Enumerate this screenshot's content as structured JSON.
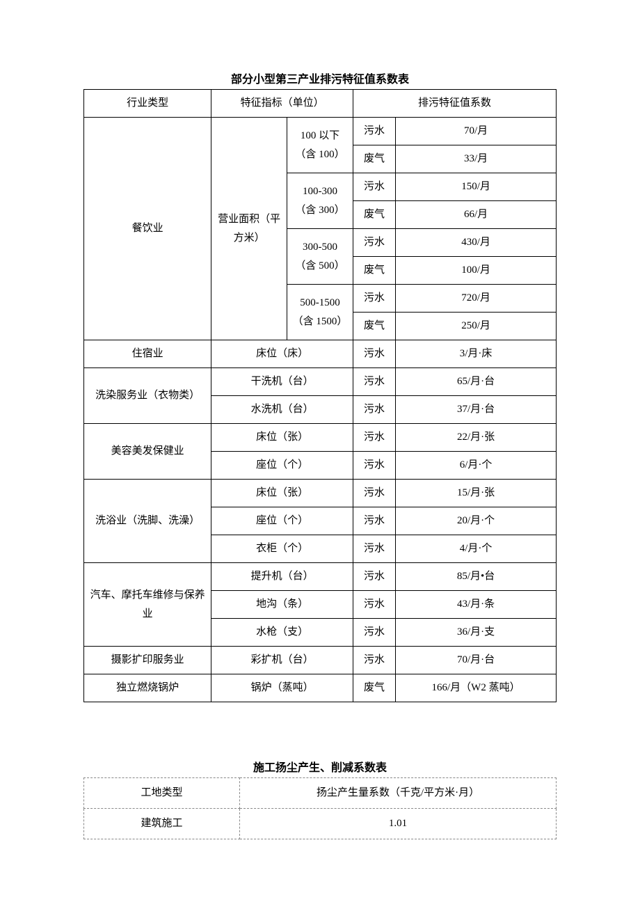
{
  "table1": {
    "title": "部分小型第三产业排污特征值系数表",
    "headers": [
      "行业类型",
      "特征指标（单位）",
      "排污特征值系数"
    ],
    "col_widths": [
      "27%",
      "16%",
      "14%",
      "9%",
      "34%"
    ],
    "catering": {
      "industry": "餐饮业",
      "metric": "营业面积（平方米）",
      "ranges": [
        {
          "range_l1": "100 以下",
          "range_l2": "（含 100）",
          "t1": "污水",
          "v1": "70/月",
          "t2": "废气",
          "v2": "33/月"
        },
        {
          "range_l1": "100-300",
          "range_l2": "（含 300）",
          "t1": "污水",
          "v1": "150/月",
          "t2": "废气",
          "v2": "66/月"
        },
        {
          "range_l1": "300-500",
          "range_l2": "（含 500）",
          "t1": "污水",
          "v1": "430/月",
          "t2": "废气",
          "v2": "100/月"
        },
        {
          "range_l1": "500-1500",
          "range_l2": "（含 1500）",
          "t1": "污水",
          "v1": "720/月",
          "t2": "废气",
          "v2": "250/月"
        }
      ]
    },
    "rows": [
      {
        "industry": "住宿业",
        "metric": "床位（床）",
        "type": "污水",
        "value": "3/月·床",
        "ind_rowspan": 1
      },
      {
        "industry": "洗染服务业（衣物类）",
        "metric": "干洗机（台）",
        "type": "污水",
        "value": "65/月·台",
        "ind_rowspan": 2
      },
      {
        "metric": "水洗机（台）",
        "type": "污水",
        "value": "37/月·台"
      },
      {
        "industry": "美容美发保健业",
        "metric": "床位（张）",
        "type": "污水",
        "value": "22/月·张",
        "ind_rowspan": 2
      },
      {
        "metric": "座位（个）",
        "type": "污水",
        "value": "6/月·个"
      },
      {
        "industry": "洗浴业（洗脚、洗澡）",
        "metric": "床位（张）",
        "type": "污水",
        "value": "15/月·张",
        "ind_rowspan": 3
      },
      {
        "metric": "座位（个）",
        "type": "污水",
        "value": "20/月·个"
      },
      {
        "metric": "衣柜（个）",
        "type": "污水",
        "value": "4/月·个"
      },
      {
        "industry": "汽车、摩托车维修与保养业",
        "metric": "提升机（台）",
        "type": "污水",
        "value": "85/月•台",
        "ind_rowspan": 3
      },
      {
        "metric": "地沟（条）",
        "type": "污水",
        "value": "43/月·条"
      },
      {
        "metric": "水枪（支）",
        "type": "污水",
        "value": "36/月·支"
      },
      {
        "industry": "摄影扩印服务业",
        "metric": "彩扩机（台）",
        "type": "污水",
        "value": "70/月·台",
        "ind_rowspan": 1
      },
      {
        "industry": "独立燃烧锅炉",
        "metric": "锅炉（蒸吨）",
        "type": "废气",
        "value": "166/月（W2 蒸吨）",
        "ind_rowspan": 1
      }
    ]
  },
  "table2": {
    "title": "施工扬尘产生、削减系数表",
    "headers": [
      "工地类型",
      "扬尘产生量系数（千克/平方米·月）"
    ],
    "col_widths": [
      "33%",
      "67%"
    ],
    "rows": [
      {
        "type": "建筑施工",
        "value": "1.01"
      }
    ]
  }
}
